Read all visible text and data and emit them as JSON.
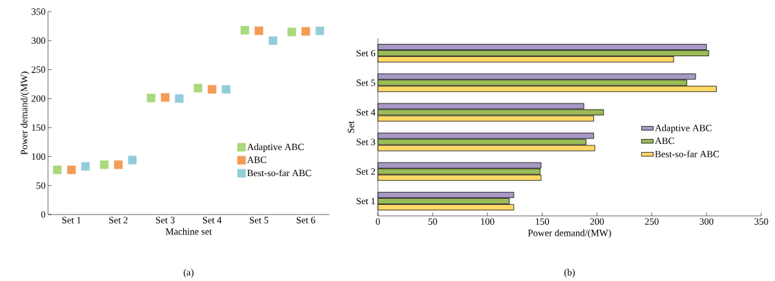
{
  "chart_data": [
    {
      "type": "scatter",
      "marker": "square",
      "xlabel": "Machine set",
      "ylabel": "Power demand/(MW)",
      "categories": [
        "Set 1",
        "Set 2",
        "Set 3",
        "Set 4",
        "Set 5",
        "Set 6"
      ],
      "ylim": [
        0,
        350
      ],
      "yticks": [
        0,
        50,
        100,
        150,
        200,
        250,
        300,
        350
      ],
      "legend": "lower right",
      "annotations": [
        "(a)"
      ],
      "series": [
        {
          "name": "Adaptive ABC",
          "color": "#a9d97a",
          "values": [
            77,
            86,
            201,
            218,
            318,
            315
          ]
        },
        {
          "name": "ABC",
          "color": "#f59b56",
          "values": [
            77,
            86,
            202,
            216,
            317,
            316
          ]
        },
        {
          "name": "Best-so-far ABC",
          "color": "#93cdd9",
          "values": [
            83,
            94,
            200,
            216,
            300,
            317
          ]
        }
      ]
    },
    {
      "type": "bar",
      "orientation": "horizontal",
      "xlabel": "Power demand/(MW)",
      "ylabel": "Set",
      "categories": [
        "Set 6",
        "Set 5",
        "Set 4",
        "Set 3",
        "Set 2",
        "Set 1"
      ],
      "xlim": [
        0,
        350
      ],
      "xticks": [
        0,
        50,
        100,
        150,
        200,
        250,
        300,
        350
      ],
      "legend": "right",
      "annotations": [
        "(b)"
      ],
      "series": [
        {
          "name": "Adaptive ABC",
          "color": "#a899c4",
          "values": [
            300,
            290,
            188,
            197,
            149,
            124
          ]
        },
        {
          "name": "ABC",
          "color": "#9bbb59",
          "values": [
            302,
            282,
            206,
            190,
            148,
            120
          ]
        },
        {
          "name": "Best-so-far ABC",
          "color": "#ffd966",
          "values": [
            270,
            309,
            197,
            198,
            149,
            124
          ]
        }
      ]
    }
  ]
}
